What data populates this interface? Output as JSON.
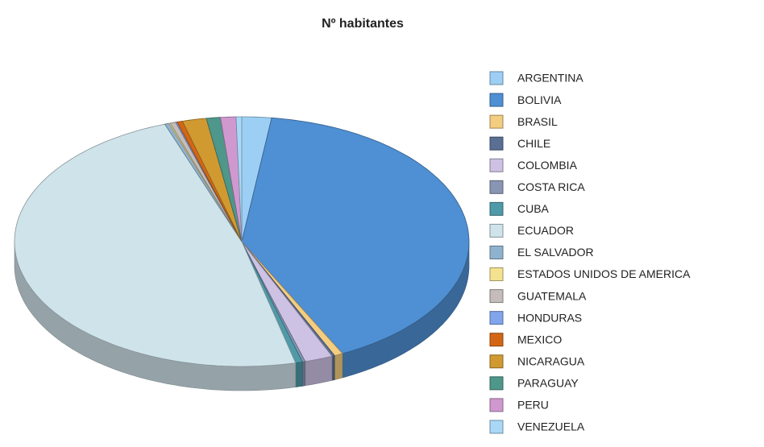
{
  "chart_data": {
    "type": "pie",
    "title": "Nº habitantes",
    "categories": [
      "ARGENTINA",
      "BOLIVIA",
      "BRASIL",
      "CHILE",
      "COLOMBIA",
      "COSTA RICA",
      "CUBA",
      "ECUADOR",
      "EL SALVADOR",
      "ESTADOS UNIDOS DE AMERICA",
      "GUATEMALA",
      "HONDURAS",
      "MEXICO",
      "NICARAGUA",
      "PARAGUAY",
      "PERU",
      "VENEZUELA"
    ],
    "values": [
      2.1,
      40.6,
      0.6,
      0.2,
      2.0,
      0.2,
      0.5,
      48.3,
      0.3,
      0.1,
      0.4,
      0.1,
      0.4,
      1.7,
      1.0,
      1.1,
      0.4
    ],
    "colors": [
      "#9dcff5",
      "#4f8fd3",
      "#f3cd80",
      "#5a6f93",
      "#cdc1e4",
      "#8895b3",
      "#4e9aa8",
      "#cfe3ea",
      "#8fb3cf",
      "#f5e28f",
      "#c4bdb9",
      "#80a5ec",
      "#d36614",
      "#d19a31",
      "#4e978a",
      "#cf99cf",
      "#a9d8f7"
    ],
    "legend": "right"
  }
}
